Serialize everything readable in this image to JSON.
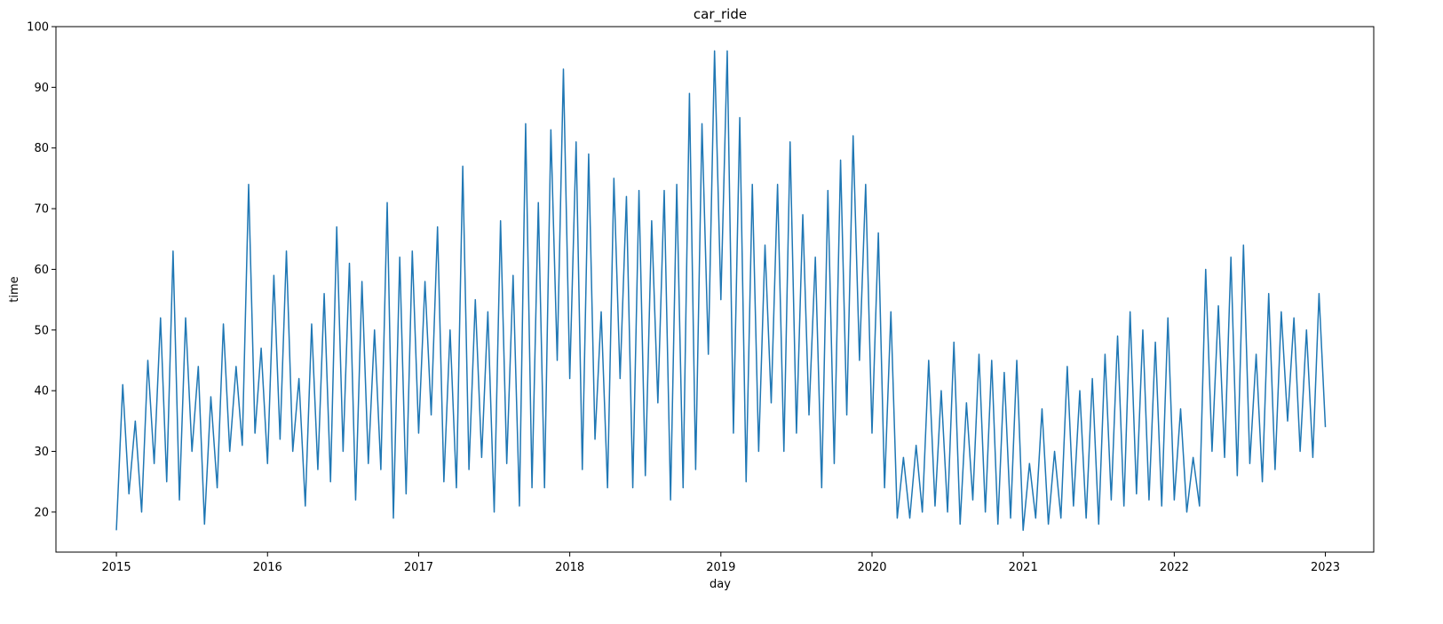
{
  "chart_data": {
    "type": "line",
    "title": "car_ride",
    "x_label": "day",
    "y_label": "time",
    "color": "#1f77b4",
    "xlim": [
      2014.6,
      2023.32
    ],
    "xticks": [
      2015,
      2016,
      2017,
      2018,
      2019,
      2020,
      2021,
      2022,
      2023
    ],
    "ylim": [
      13.4,
      100
    ],
    "yticks": [
      20,
      30,
      40,
      50,
      60,
      70,
      80,
      90,
      100
    ],
    "grid": false,
    "x": [
      2015,
      2015.042,
      2015.083,
      2015.125,
      2015.167,
      2015.208,
      2015.25,
      2015.292,
      2015.333,
      2015.375,
      2015.417,
      2015.458,
      2015.5,
      2015.542,
      2015.583,
      2015.625,
      2015.667,
      2015.708,
      2015.75,
      2015.792,
      2015.833,
      2015.875,
      2015.917,
      2015.958,
      2016,
      2016.042,
      2016.083,
      2016.125,
      2016.167,
      2016.208,
      2016.25,
      2016.292,
      2016.333,
      2016.375,
      2016.417,
      2016.458,
      2016.5,
      2016.542,
      2016.583,
      2016.625,
      2016.667,
      2016.708,
      2016.75,
      2016.792,
      2016.833,
      2016.875,
      2016.917,
      2016.958,
      2017,
      2017.042,
      2017.083,
      2017.125,
      2017.167,
      2017.208,
      2017.25,
      2017.292,
      2017.333,
      2017.375,
      2017.417,
      2017.458,
      2017.5,
      2017.542,
      2017.583,
      2017.625,
      2017.667,
      2017.708,
      2017.75,
      2017.792,
      2017.833,
      2017.875,
      2017.917,
      2017.958,
      2018,
      2018.042,
      2018.083,
      2018.125,
      2018.167,
      2018.208,
      2018.25,
      2018.292,
      2018.333,
      2018.375,
      2018.417,
      2018.458,
      2018.5,
      2018.542,
      2018.583,
      2018.625,
      2018.667,
      2018.708,
      2018.75,
      2018.792,
      2018.833,
      2018.875,
      2018.917,
      2018.958,
      2019,
      2019.042,
      2019.083,
      2019.125,
      2019.167,
      2019.208,
      2019.25,
      2019.292,
      2019.333,
      2019.375,
      2019.417,
      2019.458,
      2019.5,
      2019.542,
      2019.583,
      2019.625,
      2019.667,
      2019.708,
      2019.75,
      2019.792,
      2019.833,
      2019.875,
      2019.917,
      2019.958,
      2020,
      2020.042,
      2020.083,
      2020.125,
      2020.167,
      2020.208,
      2020.25,
      2020.292,
      2020.333,
      2020.375,
      2020.417,
      2020.458,
      2020.5,
      2020.542,
      2020.583,
      2020.625,
      2020.667,
      2020.708,
      2020.75,
      2020.792,
      2020.833,
      2020.875,
      2020.917,
      2020.958,
      2021,
      2021.042,
      2021.083,
      2021.125,
      2021.167,
      2021.208,
      2021.25,
      2021.292,
      2021.333,
      2021.375,
      2021.417,
      2021.458,
      2021.5,
      2021.542,
      2021.583,
      2021.625,
      2021.667,
      2021.708,
      2021.75,
      2021.792,
      2021.833,
      2021.875,
      2021.917,
      2021.958,
      2022,
      2022.042,
      2022.083,
      2022.125,
      2022.167,
      2022.208,
      2022.25,
      2022.292,
      2022.333,
      2022.375,
      2022.417,
      2022.458,
      2022.5,
      2022.542,
      2022.583,
      2022.625,
      2022.667,
      2022.708,
      2022.75,
      2022.792,
      2022.833,
      2022.875,
      2022.917,
      2022.958,
      2023
    ],
    "values": [
      17,
      41,
      23,
      35,
      20,
      45,
      28,
      52,
      25,
      63,
      22,
      52,
      30,
      44,
      18,
      39,
      24,
      51,
      30,
      44,
      31,
      74,
      33,
      47,
      28,
      59,
      32,
      63,
      30,
      42,
      21,
      51,
      27,
      56,
      25,
      67,
      30,
      61,
      22,
      58,
      28,
      50,
      27,
      71,
      19,
      62,
      23,
      63,
      33,
      58,
      36,
      67,
      25,
      50,
      24,
      77,
      27,
      55,
      29,
      53,
      20,
      68,
      28,
      59,
      21,
      84,
      24,
      71,
      24,
      83,
      45,
      93,
      42,
      81,
      27,
      79,
      32,
      53,
      24,
      75,
      42,
      72,
      24,
      73,
      26,
      68,
      38,
      73,
      22,
      74,
      24,
      89,
      27,
      84,
      46,
      96,
      55,
      96,
      33,
      85,
      25,
      74,
      30,
      64,
      38,
      74,
      30,
      81,
      33,
      69,
      36,
      62,
      24,
      73,
      28,
      78,
      36,
      82,
      45,
      74,
      33,
      66,
      24,
      53,
      19,
      29,
      19,
      31,
      20,
      45,
      21,
      40,
      20,
      48,
      18,
      38,
      22,
      46,
      20,
      45,
      18,
      43,
      19,
      45,
      17,
      28,
      19,
      37,
      18,
      30,
      19,
      44,
      21,
      40,
      19,
      42,
      18,
      46,
      22,
      49,
      21,
      53,
      23,
      50,
      22,
      48,
      21,
      52,
      22,
      37,
      20,
      29,
      21,
      60,
      30,
      54,
      29,
      62,
      26,
      64,
      28,
      46,
      25,
      56,
      27,
      53,
      35,
      52,
      30,
      50,
      29,
      56,
      34
    ]
  }
}
